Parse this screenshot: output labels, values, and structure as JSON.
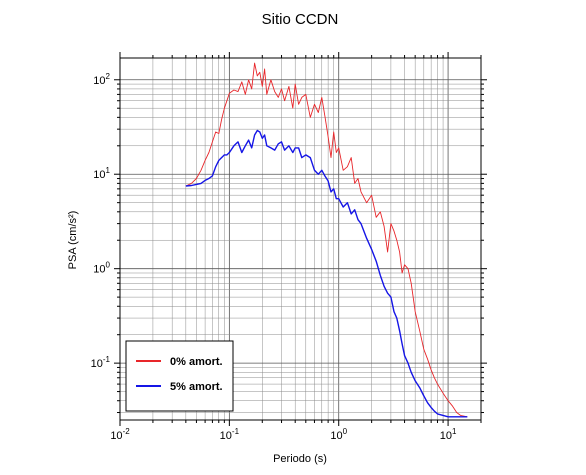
{
  "chart_data": {
    "type": "line",
    "title": "Sitio CCDN",
    "xlabel": "Periodo (s)",
    "ylabel": "PSA (cm/s²)",
    "xscale": "log",
    "yscale": "log",
    "xlim": [
      0.01,
      20
    ],
    "ylim": [
      0.025,
      170
    ],
    "grid": true,
    "legend_position": "bottom-left",
    "x_ticks": [
      {
        "value": 0.01,
        "base": "10",
        "exp": "-2"
      },
      {
        "value": 0.1,
        "base": "10",
        "exp": "-1"
      },
      {
        "value": 1,
        "base": "10",
        "exp": "0"
      },
      {
        "value": 10,
        "base": "10",
        "exp": "1"
      }
    ],
    "y_ticks": [
      {
        "value": 0.1,
        "base": "10",
        "exp": "-1"
      },
      {
        "value": 1,
        "base": "10",
        "exp": "0"
      },
      {
        "value": 10,
        "base": "10",
        "exp": "1"
      },
      {
        "value": 100,
        "base": "10",
        "exp": "2"
      }
    ],
    "series": [
      {
        "name": "0% amort.",
        "color": "#e8262a",
        "x": [
          0.04,
          0.045,
          0.05,
          0.055,
          0.06,
          0.065,
          0.07,
          0.075,
          0.08,
          0.085,
          0.09,
          0.095,
          0.1,
          0.11,
          0.12,
          0.13,
          0.14,
          0.15,
          0.16,
          0.17,
          0.18,
          0.19,
          0.2,
          0.21,
          0.22,
          0.24,
          0.26,
          0.28,
          0.3,
          0.32,
          0.35,
          0.38,
          0.4,
          0.43,
          0.46,
          0.5,
          0.55,
          0.6,
          0.65,
          0.7,
          0.75,
          0.8,
          0.85,
          0.9,
          0.95,
          1.0,
          1.1,
          1.2,
          1.3,
          1.4,
          1.5,
          1.6,
          1.8,
          2.0,
          2.2,
          2.4,
          2.6,
          2.8,
          3.0,
          3.2,
          3.4,
          3.6,
          3.8,
          4.0,
          4.3,
          4.6,
          5.0,
          5.5,
          6.0,
          6.5,
          7.0,
          7.5,
          8.0,
          9.0,
          10.0,
          11.0,
          12.0,
          13.0,
          15.0
        ],
        "y": [
          7.5,
          8,
          9,
          11,
          14,
          17,
          22,
          28,
          27,
          38,
          50,
          60,
          72,
          78,
          75,
          95,
          70,
          100,
          80,
          150,
          110,
          120,
          85,
          130,
          70,
          100,
          75,
          65,
          80,
          60,
          85,
          50,
          90,
          55,
          65,
          70,
          40,
          55,
          45,
          65,
          40,
          25,
          15,
          28,
          17,
          19,
          11,
          12,
          15,
          8,
          9,
          6.5,
          5,
          6,
          3.5,
          4,
          2.8,
          1.5,
          3,
          2.5,
          2,
          1.5,
          0.9,
          1.1,
          1.0,
          0.7,
          0.35,
          0.22,
          0.14,
          0.11,
          0.085,
          0.07,
          0.06,
          0.048,
          0.04,
          0.035,
          0.03,
          0.028,
          0.027
        ]
      },
      {
        "name": "5% amort.",
        "color": "#1515e6",
        "x": [
          0.04,
          0.045,
          0.05,
          0.055,
          0.06,
          0.065,
          0.07,
          0.075,
          0.08,
          0.085,
          0.09,
          0.095,
          0.1,
          0.11,
          0.12,
          0.13,
          0.14,
          0.15,
          0.16,
          0.17,
          0.18,
          0.19,
          0.2,
          0.21,
          0.22,
          0.24,
          0.26,
          0.28,
          0.3,
          0.32,
          0.35,
          0.38,
          0.4,
          0.43,
          0.46,
          0.5,
          0.55,
          0.6,
          0.65,
          0.7,
          0.75,
          0.8,
          0.85,
          0.9,
          0.95,
          1.0,
          1.1,
          1.2,
          1.3,
          1.4,
          1.5,
          1.6,
          1.8,
          2.0,
          2.2,
          2.4,
          2.6,
          2.8,
          3.0,
          3.2,
          3.4,
          3.6,
          3.8,
          4.0,
          4.3,
          4.6,
          5.0,
          5.5,
          6.0,
          6.5,
          7.0,
          7.5,
          8.0,
          9.0,
          10.0,
          11.0,
          12.0,
          13.0,
          15.0
        ],
        "y": [
          7.5,
          7.6,
          7.8,
          8.0,
          8.6,
          9.0,
          9.6,
          12,
          14,
          15,
          16,
          16,
          17,
          20,
          22,
          17,
          20,
          23,
          19,
          26,
          29,
          28,
          24,
          26,
          20,
          19,
          18,
          21,
          22,
          18,
          20,
          17,
          19,
          19,
          15,
          16,
          15,
          11,
          10,
          11,
          9.5,
          8.5,
          6.5,
          7,
          5.5,
          5.5,
          4.5,
          5,
          3.8,
          4.2,
          3.3,
          3.0,
          2.1,
          1.6,
          1.2,
          0.85,
          0.65,
          0.55,
          0.5,
          0.35,
          0.3,
          0.22,
          0.16,
          0.12,
          0.1,
          0.08,
          0.065,
          0.055,
          0.045,
          0.038,
          0.034,
          0.031,
          0.029,
          0.028,
          0.027,
          0.027,
          0.027,
          0.027,
          0.027
        ]
      }
    ]
  }
}
